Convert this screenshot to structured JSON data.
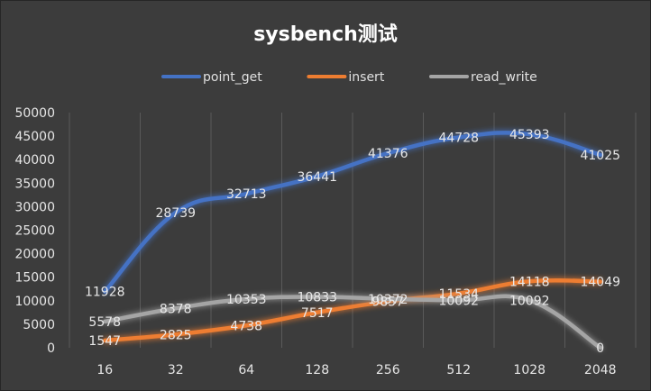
{
  "chart_data": {
    "type": "line",
    "title": "sysbench测试",
    "categories": [
      "16",
      "32",
      "64",
      "128",
      "256",
      "512",
      "1028",
      "2048"
    ],
    "ylim": [
      0,
      50000
    ],
    "yticks": [
      0,
      5000,
      10000,
      15000,
      20000,
      25000,
      30000,
      35000,
      40000,
      45000,
      50000
    ],
    "grid": "vertical",
    "legend_position": "top",
    "series": [
      {
        "name": "point_get",
        "color": "#4472c4",
        "values": [
          11928,
          28739,
          32713,
          36441,
          41376,
          44728,
          45393,
          41025
        ]
      },
      {
        "name": "insert",
        "color": "#ed7d31",
        "values": [
          1547,
          2825,
          4738,
          7517,
          9857,
          11534,
          14118,
          14049
        ]
      },
      {
        "name": "read_write",
        "color": "#a5a5a5",
        "values": [
          5578,
          8378,
          10353,
          10833,
          10372,
          10092,
          10092,
          0
        ]
      }
    ]
  }
}
